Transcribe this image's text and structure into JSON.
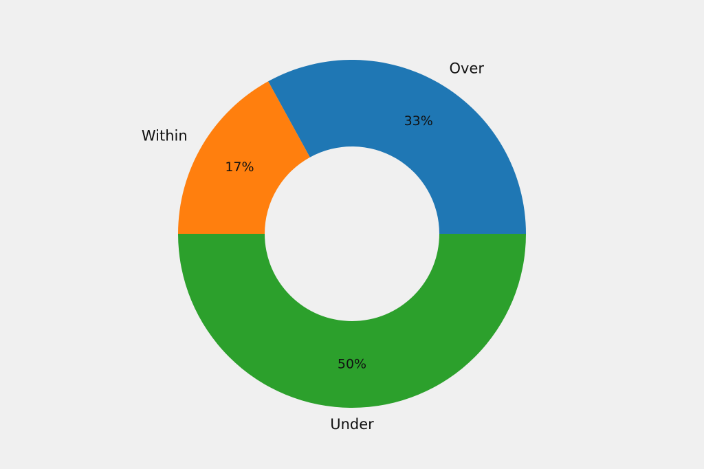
{
  "chart_data": {
    "type": "pie",
    "variant": "donut",
    "title": "",
    "categories": [
      "Over",
      "Within",
      "Under"
    ],
    "values": [
      33,
      17,
      50
    ],
    "value_labels": [
      "33%",
      "17%",
      "50%"
    ],
    "unit": "%",
    "colors": [
      "#1f77b4",
      "#ff7f0e",
      "#2ca02c"
    ],
    "start_angle_deg": 0,
    "direction": "counterclockwise",
    "legend": "none",
    "background": "#f0f0f0"
  }
}
